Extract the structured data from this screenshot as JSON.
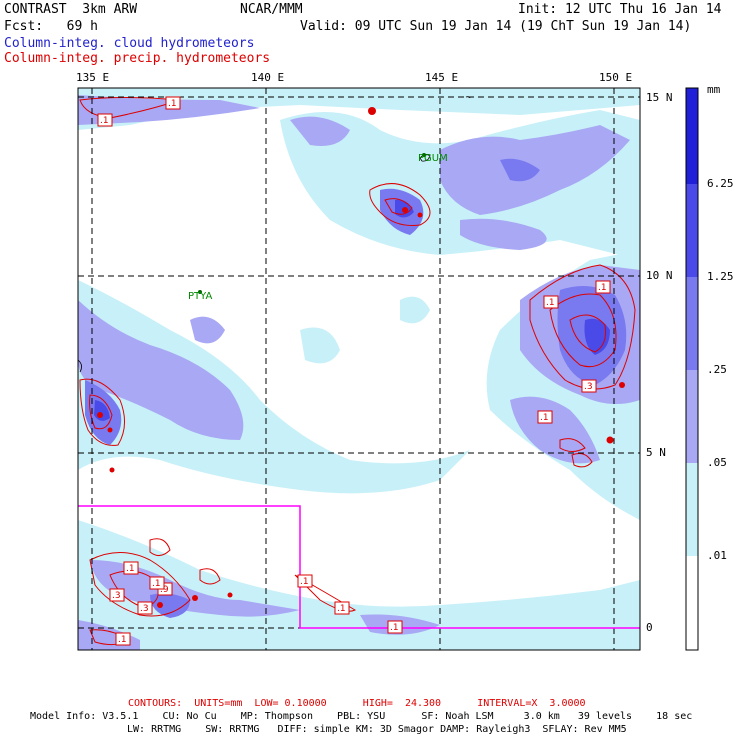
{
  "header": {
    "title": "CONTRAST  3km ARW",
    "org": "NCAR/MMM",
    "init": "Init: 12 UTC Thu 16 Jan 14",
    "fcst": "Fcst:   69 h",
    "valid": "Valid: 09 UTC Sun 19 Jan 14 (19 ChT Sun 19 Jan 14)",
    "field1": "Column-integ. cloud hydrometeors",
    "field2": "Column-integ. precip. hydrometeors"
  },
  "map": {
    "lon_labels": [
      "135 E",
      "140 E",
      "145 E",
      "150 E"
    ],
    "lat_labels": [
      "15 N",
      "10 N",
      "5 N",
      "0"
    ],
    "stations": [
      "PGUM",
      "PTYA"
    ],
    "box_labels": [
      ".1",
      ".1",
      ".1",
      ".1",
      ".3",
      ".1",
      ".3",
      ".1",
      ".9",
      ".1",
      ".3",
      ".1",
      ".1",
      ".1",
      ".1"
    ]
  },
  "legend": {
    "units": "mm",
    "levels": [
      "6.25",
      "1.25",
      ".25",
      ".05",
      ".01"
    ],
    "colors": [
      "#2020d8",
      "#4a4ae8",
      "#7a7af0",
      "#a8a8f4",
      "#c8f0f8",
      "#ffffff"
    ]
  },
  "footer": {
    "contours": "CONTOURS:  UNITS=mm  LOW= 0.10000      HIGH=  24.300      INTERVAL=X  3.0000",
    "model1": "Model Info: V3.5.1    CU: No Cu    MP: Thompson    PBL: YSU      SF: Noah LSM     3.0 km   39 levels    18 sec",
    "model2": "LW: RRTMG    SW: RRTMG   DIFF: simple KM: 3D Smagor DAMP: Rayleigh3  SFLAY: Rev MM5"
  }
}
